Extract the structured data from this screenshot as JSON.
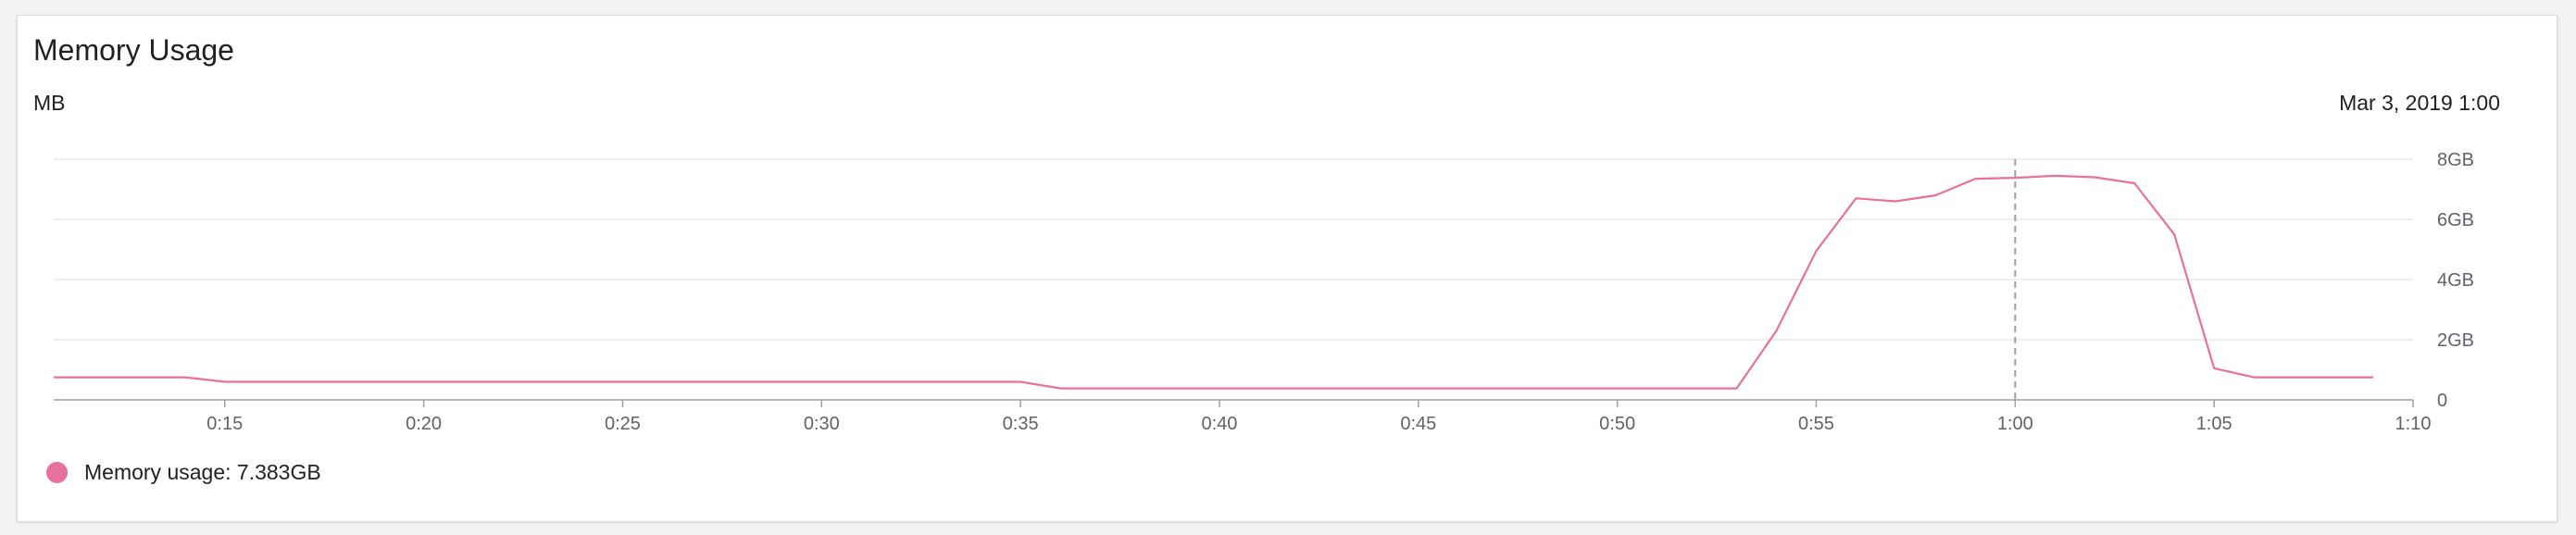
{
  "panel": {
    "title": "Memory Usage",
    "unit_label": "MB",
    "hover_time": "Mar 3, 2019 1:00"
  },
  "legend": {
    "label": "Memory usage: 7.383GB",
    "color": "#e8709c"
  },
  "chart_data": {
    "type": "line",
    "x_tick_labels": [
      "0:15",
      "0:20",
      "0:25",
      "0:30",
      "0:35",
      "0:40",
      "0:45",
      "0:50",
      "0:55",
      "1:00",
      "1:05",
      "1:10"
    ],
    "y_tick_labels": [
      "0",
      "2GB",
      "4GB",
      "6GB",
      "8GB"
    ],
    "ylim": [
      0,
      8
    ],
    "xlim": [
      10.7,
      70
    ],
    "grid": true,
    "hover_x": 60,
    "series": [
      {
        "name": "Memory usage",
        "color": "#e8709c",
        "x": [
          10.7,
          14,
          15,
          20,
          25,
          30,
          35,
          36,
          40,
          45,
          50,
          53,
          54,
          55,
          56,
          57,
          58,
          59,
          60,
          61,
          62,
          63,
          64,
          65,
          66,
          67,
          68,
          69
        ],
        "y": [
          0.75,
          0.75,
          0.6,
          0.6,
          0.6,
          0.6,
          0.6,
          0.38,
          0.38,
          0.38,
          0.38,
          0.38,
          2.3,
          4.95,
          6.7,
          6.6,
          6.8,
          7.35,
          7.383,
          7.45,
          7.4,
          7.2,
          5.5,
          1.05,
          0.75,
          0.75,
          0.75,
          0.75
        ]
      }
    ]
  }
}
